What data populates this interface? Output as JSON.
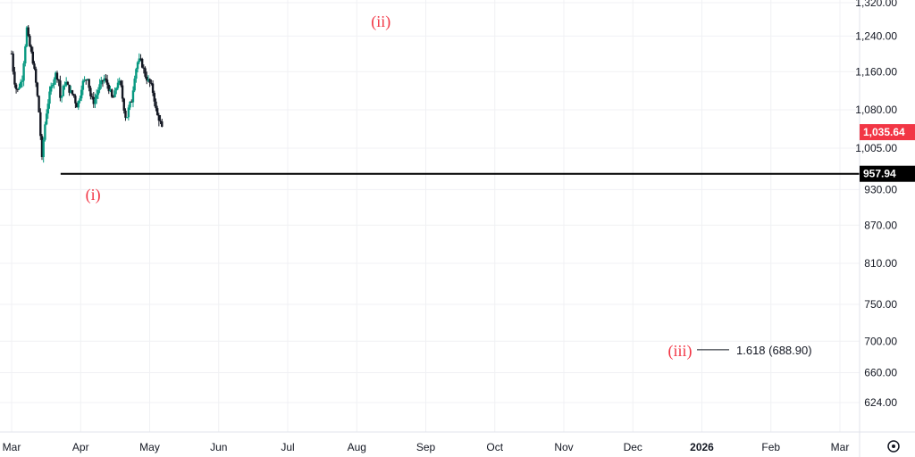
{
  "chart_data": {
    "type": "candlestick",
    "price_axis": {
      "ticks": [
        {
          "value": 1320,
          "label": "1,320.00"
        },
        {
          "value": 1240,
          "label": "1,240.00"
        },
        {
          "value": 1160,
          "label": "1,160.00"
        },
        {
          "value": 1080,
          "label": "1,080.00"
        },
        {
          "value": 1005,
          "label": "1,005.00"
        },
        {
          "value": 930,
          "label": "930.00"
        },
        {
          "value": 870,
          "label": "870.00"
        },
        {
          "value": 810,
          "label": "810.00"
        },
        {
          "value": 750,
          "label": "750.00"
        },
        {
          "value": 700,
          "label": "700.00"
        },
        {
          "value": 660,
          "label": "660.00"
        },
        {
          "value": 624,
          "label": "624.00"
        }
      ],
      "scale": "log"
    },
    "time_axis": {
      "ticks": [
        {
          "label": "Mar",
          "bold": false
        },
        {
          "label": "Apr",
          "bold": false
        },
        {
          "label": "May",
          "bold": false
        },
        {
          "label": "Jun",
          "bold": false
        },
        {
          "label": "Jul",
          "bold": false
        },
        {
          "label": "Aug",
          "bold": false
        },
        {
          "label": "Sep",
          "bold": false
        },
        {
          "label": "Oct",
          "bold": false
        },
        {
          "label": "Nov",
          "bold": false
        },
        {
          "label": "Dec",
          "bold": false
        },
        {
          "label": "2026",
          "bold": true
        },
        {
          "label": "Feb",
          "bold": false
        },
        {
          "label": "Mar",
          "bold": false
        }
      ]
    },
    "last_price": {
      "value": 1035.64,
      "label": "1,035.64",
      "color": "#f23645"
    },
    "support_level": {
      "value": 957.94,
      "label": "957.94",
      "color": "#000000"
    },
    "up_color": "#089981",
    "down_color": "#131722",
    "price_path": [
      {
        "t": 0.0,
        "v": 1200
      },
      {
        "t": 0.03,
        "v": 1150
      },
      {
        "t": 0.06,
        "v": 1125
      },
      {
        "t": 0.09,
        "v": 1120
      },
      {
        "t": 0.12,
        "v": 1135
      },
      {
        "t": 0.15,
        "v": 1140
      },
      {
        "t": 0.18,
        "v": 1190
      },
      {
        "t": 0.22,
        "v": 1258
      },
      {
        "t": 0.25,
        "v": 1225
      },
      {
        "t": 0.28,
        "v": 1205
      },
      {
        "t": 0.31,
        "v": 1182
      },
      {
        "t": 0.34,
        "v": 1150
      },
      {
        "t": 0.37,
        "v": 1112
      },
      {
        "t": 0.4,
        "v": 1070
      },
      {
        "t": 0.42,
        "v": 1025
      },
      {
        "t": 0.44,
        "v": 982
      },
      {
        "t": 0.46,
        "v": 1018
      },
      {
        "t": 0.49,
        "v": 1060
      },
      {
        "t": 0.52,
        "v": 1090
      },
      {
        "t": 0.56,
        "v": 1118
      },
      {
        "t": 0.6,
        "v": 1142
      },
      {
        "t": 0.64,
        "v": 1155
      },
      {
        "t": 0.68,
        "v": 1145
      },
      {
        "t": 0.71,
        "v": 1095
      },
      {
        "t": 0.74,
        "v": 1120
      },
      {
        "t": 0.78,
        "v": 1140
      },
      {
        "t": 0.82,
        "v": 1125
      },
      {
        "t": 0.86,
        "v": 1115
      },
      {
        "t": 0.9,
        "v": 1110
      },
      {
        "t": 0.94,
        "v": 1088
      },
      {
        "t": 0.98,
        "v": 1100
      },
      {
        "t": 1.02,
        "v": 1135
      },
      {
        "t": 1.06,
        "v": 1140
      },
      {
        "t": 1.1,
        "v": 1150
      },
      {
        "t": 1.14,
        "v": 1110
      },
      {
        "t": 1.18,
        "v": 1095
      },
      {
        "t": 1.22,
        "v": 1105
      },
      {
        "t": 1.26,
        "v": 1125
      },
      {
        "t": 1.3,
        "v": 1135
      },
      {
        "t": 1.34,
        "v": 1145
      },
      {
        "t": 1.38,
        "v": 1135
      },
      {
        "t": 1.42,
        "v": 1120
      },
      {
        "t": 1.46,
        "v": 1100
      },
      {
        "t": 1.5,
        "v": 1115
      },
      {
        "t": 1.54,
        "v": 1140
      },
      {
        "t": 1.58,
        "v": 1130
      },
      {
        "t": 1.62,
        "v": 1090
      },
      {
        "t": 1.66,
        "v": 1060
      },
      {
        "t": 1.7,
        "v": 1085
      },
      {
        "t": 1.74,
        "v": 1100
      },
      {
        "t": 1.78,
        "v": 1150
      },
      {
        "t": 1.82,
        "v": 1180
      },
      {
        "t": 1.86,
        "v": 1185
      },
      {
        "t": 1.9,
        "v": 1172
      },
      {
        "t": 1.94,
        "v": 1150
      },
      {
        "t": 1.98,
        "v": 1140
      },
      {
        "t": 2.02,
        "v": 1130
      },
      {
        "t": 2.06,
        "v": 1110
      },
      {
        "t": 2.1,
        "v": 1070
      },
      {
        "t": 2.14,
        "v": 1062
      },
      {
        "t": 2.18,
        "v": 1040
      }
    ],
    "annotations": [
      {
        "name": "wave-i-label",
        "label": "(i)"
      },
      {
        "name": "wave-ii-label",
        "label": "(ii)"
      },
      {
        "name": "wave-iii-label",
        "label": "(iii)",
        "fib_label": "1.618 (688.90)",
        "fib_value": 688.9
      }
    ]
  },
  "settings_icon": "gear-icon"
}
